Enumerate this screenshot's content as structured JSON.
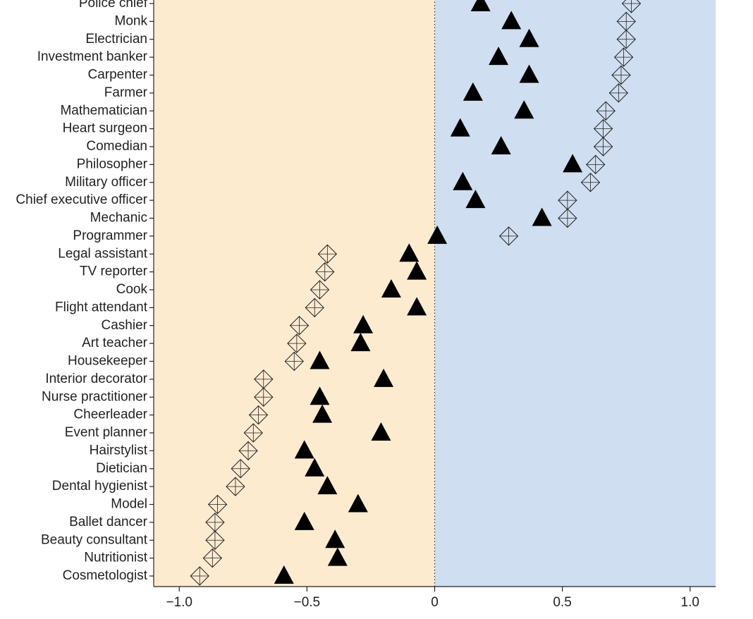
{
  "chart_data": {
    "type": "dot",
    "categories": [
      "Police chief",
      "Monk",
      "Electrician",
      "Investment banker",
      "Carpenter",
      "Farmer",
      "Mathematician",
      "Heart surgeon",
      "Comedian",
      "Philosopher",
      "Military officer",
      "Chief executive officer",
      "Mechanic",
      "Programmer",
      "Legal assistant",
      "TV reporter",
      "Cook",
      "Flight attendant",
      "Cashier",
      "Art teacher",
      "Housekeeper",
      "Interior decorator",
      "Nurse practitioner",
      "Cheerleader",
      "Event planner",
      "Hairstylist",
      "Dietician",
      "Dental hygienist",
      "Model",
      "Ballet dancer",
      "Beauty consultant",
      "Nutritionist",
      "Cosmetologist"
    ],
    "series": [
      {
        "marker": "triangle",
        "color": "#000000",
        "values": [
          0.18,
          0.3,
          0.37,
          0.25,
          0.37,
          0.15,
          0.35,
          0.1,
          0.26,
          0.54,
          0.11,
          0.16,
          0.42,
          0.01,
          -0.1,
          -0.07,
          -0.17,
          -0.07,
          -0.28,
          -0.29,
          -0.45,
          -0.2,
          -0.45,
          -0.44,
          -0.21,
          -0.51,
          -0.47,
          -0.42,
          -0.3,
          -0.51,
          -0.39,
          -0.38,
          -0.59
        ]
      },
      {
        "marker": "diamond",
        "color": "#222222",
        "values": [
          0.77,
          0.75,
          0.75,
          0.74,
          0.73,
          0.72,
          0.67,
          0.66,
          0.66,
          0.63,
          0.61,
          0.52,
          0.52,
          0.29,
          -0.42,
          -0.43,
          -0.45,
          -0.47,
          -0.53,
          -0.54,
          -0.55,
          -0.67,
          -0.67,
          -0.69,
          -0.71,
          -0.73,
          -0.76,
          -0.78,
          -0.85,
          -0.86,
          -0.86,
          -0.87,
          -0.92
        ]
      }
    ],
    "xlim": [
      -1.1,
      1.1
    ],
    "xticks": [
      {
        "value": -1,
        "label": "−1.0"
      },
      {
        "value": -0.5,
        "label": "−0.5"
      },
      0,
      0.5,
      {
        "value": 1,
        "label": "1.0"
      }
    ],
    "negative_color": "#fdebd0",
    "positive_color": "#cfdef0"
  }
}
